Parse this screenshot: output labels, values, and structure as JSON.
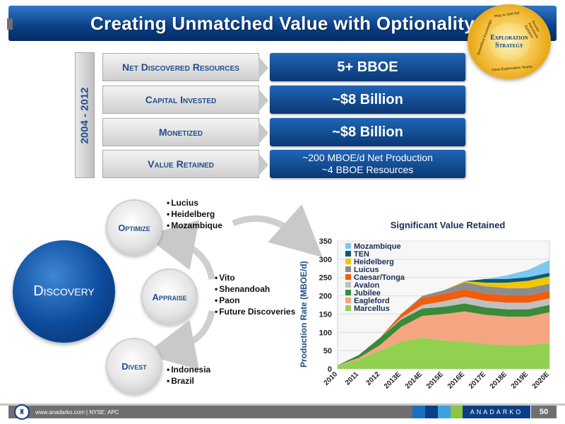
{
  "title": "Creating Unmatched Value with Optionality",
  "badge": {
    "line1": "Exploration",
    "line2": "Strategy",
    "ring_top": "Play to Sell Set",
    "ring_right": "Proven Petroleum Systems",
    "ring_left": "Quantified Knowledge",
    "ring_bottom": "Clear Exploration Teams"
  },
  "period_label": "2004 - 2012",
  "rows": [
    {
      "label": "Net Discovered Resources",
      "value": "5+ BBOE",
      "value2": ""
    },
    {
      "label": "Capital Invested",
      "value": "~$8 Billion",
      "value2": ""
    },
    {
      "label": "Monetized",
      "value": "~$8 Billion",
      "value2": ""
    },
    {
      "label": "Value Retained",
      "value": "~200 MBOE/d Net Production",
      "value2": "~4 BBOE Resources"
    }
  ],
  "cycle": {
    "discovery": "Discovery",
    "optimize": "Optimize",
    "appraise": "Appraise",
    "divest": "Divest"
  },
  "optimize_items": [
    "Lucius",
    "Heidelberg",
    "Mozambique"
  ],
  "appraise_items": [
    "Vito",
    "Shenandoah",
    "Paon",
    "Future Discoveries"
  ],
  "divest_items": [
    "Indonesia",
    "Brazil"
  ],
  "chart_data": {
    "type": "area",
    "title": "Significant Value Retained",
    "ylabel": "Production Rate (MBOE/d)",
    "xlabel": "",
    "x": [
      "2010",
      "2011",
      "2012",
      "2013E",
      "2014E",
      "2015E",
      "2016E",
      "2017E",
      "2018E",
      "2019E",
      "2020E"
    ],
    "ylim": [
      0,
      350
    ],
    "yticks": [
      0,
      50,
      100,
      150,
      200,
      250,
      300,
      350
    ],
    "stacked": true,
    "legend_position": "top-left",
    "series": [
      {
        "name": "Marcellus",
        "color": "#92d050",
        "values": [
          10,
          25,
          50,
          75,
          85,
          78,
          75,
          68,
          65,
          65,
          70
        ]
      },
      {
        "name": "Eagleford",
        "color": "#f4a582",
        "values": [
          0,
          5,
          15,
          40,
          60,
          72,
          82,
          80,
          78,
          78,
          85
        ]
      },
      {
        "name": "Jubilee",
        "color": "#3a8a3a",
        "values": [
          0,
          8,
          20,
          20,
          20,
          20,
          22,
          20,
          20,
          20,
          20
        ]
      },
      {
        "name": "Avalon",
        "color": "#c0c0c0",
        "values": [
          0,
          0,
          0,
          5,
          10,
          15,
          18,
          18,
          18,
          18,
          18
        ]
      },
      {
        "name": "Caesar/Tonga",
        "color": "#f25c0a",
        "values": [
          0,
          0,
          0,
          10,
          20,
          20,
          20,
          20,
          20,
          20,
          20
        ]
      },
      {
        "name": "Luicus",
        "color": "#8c8c8c",
        "values": [
          0,
          0,
          0,
          0,
          5,
          10,
          20,
          20,
          20,
          20,
          20
        ]
      },
      {
        "name": "Heidelberg",
        "color": "#f5c400",
        "values": [
          0,
          0,
          0,
          0,
          0,
          0,
          3,
          10,
          15,
          20,
          20
        ]
      },
      {
        "name": "TEN",
        "color": "#0a5a78",
        "values": [
          0,
          0,
          0,
          0,
          0,
          0,
          0,
          10,
          10,
          10,
          10
        ]
      },
      {
        "name": "Mozambique",
        "color": "#7ec8ef",
        "values": [
          0,
          0,
          0,
          0,
          0,
          0,
          0,
          0,
          10,
          20,
          35
        ]
      }
    ]
  },
  "footer": {
    "website": "www.anadarko.com | NYSE: APC",
    "brand": "ANADARKO",
    "page": "50",
    "logo_glyph": "♜",
    "squares": [
      "#1d6fc2",
      "#0b3f86",
      "#3fa0e0",
      "#8cc63f"
    ]
  }
}
